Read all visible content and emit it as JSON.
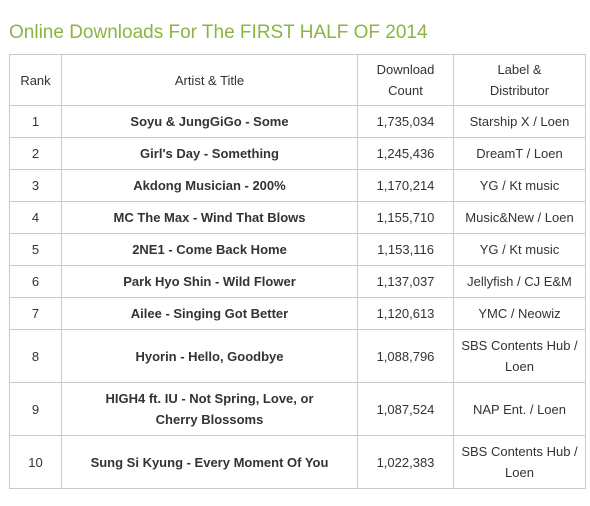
{
  "page": {
    "title": "Online Downloads For The FIRST HALF OF 2014",
    "title_color": "#8cb440"
  },
  "table": {
    "headers": {
      "rank": "Rank",
      "artist_title": "Artist & Title",
      "download_count_line1": "Download",
      "download_count_line2": "Count",
      "label_line1": "Label &",
      "label_line2": "Distributor"
    },
    "rows": [
      {
        "rank": "1",
        "title": "Soyu & JungGiGo - Some",
        "count": "1,735,034",
        "label": "Starship X / Loen"
      },
      {
        "rank": "2",
        "title": "Girl's Day - Something",
        "count": "1,245,436",
        "label": "DreamT / Loen"
      },
      {
        "rank": "3",
        "title": "Akdong Musician - 200%",
        "count": "1,170,214",
        "label": "YG / Kt music"
      },
      {
        "rank": "4",
        "title": "MC The Max - Wind That Blows",
        "count": "1,155,710",
        "label": "Music&New / Loen"
      },
      {
        "rank": "5",
        "title": "2NE1 - Come Back Home",
        "count": "1,153,116",
        "label": "YG / Kt music"
      },
      {
        "rank": "6",
        "title": "Park Hyo Shin - Wild Flower",
        "count": "1,137,037",
        "label": "Jellyfish / CJ E&M"
      },
      {
        "rank": "7",
        "title": "Ailee - Singing Got Better",
        "count": "1,120,613",
        "label": "YMC / Neowiz"
      },
      {
        "rank": "8",
        "title": "Hyorin - Hello, Goodbye",
        "count": "1,088,796",
        "label_line1": "SBS Contents Hub /",
        "label_line2": "Loen"
      },
      {
        "rank": "9",
        "title_line1": "HIGH4 ft. IU - Not Spring, Love, or",
        "title_line2": "Cherry Blossoms",
        "count": "1,087,524",
        "label": "NAP Ent. / Loen"
      },
      {
        "rank": "10",
        "title": "Sung Si Kyung - Every Moment Of You",
        "count": "1,022,383",
        "label_line1": "SBS Contents Hub /",
        "label_line2": "Loen"
      }
    ]
  }
}
